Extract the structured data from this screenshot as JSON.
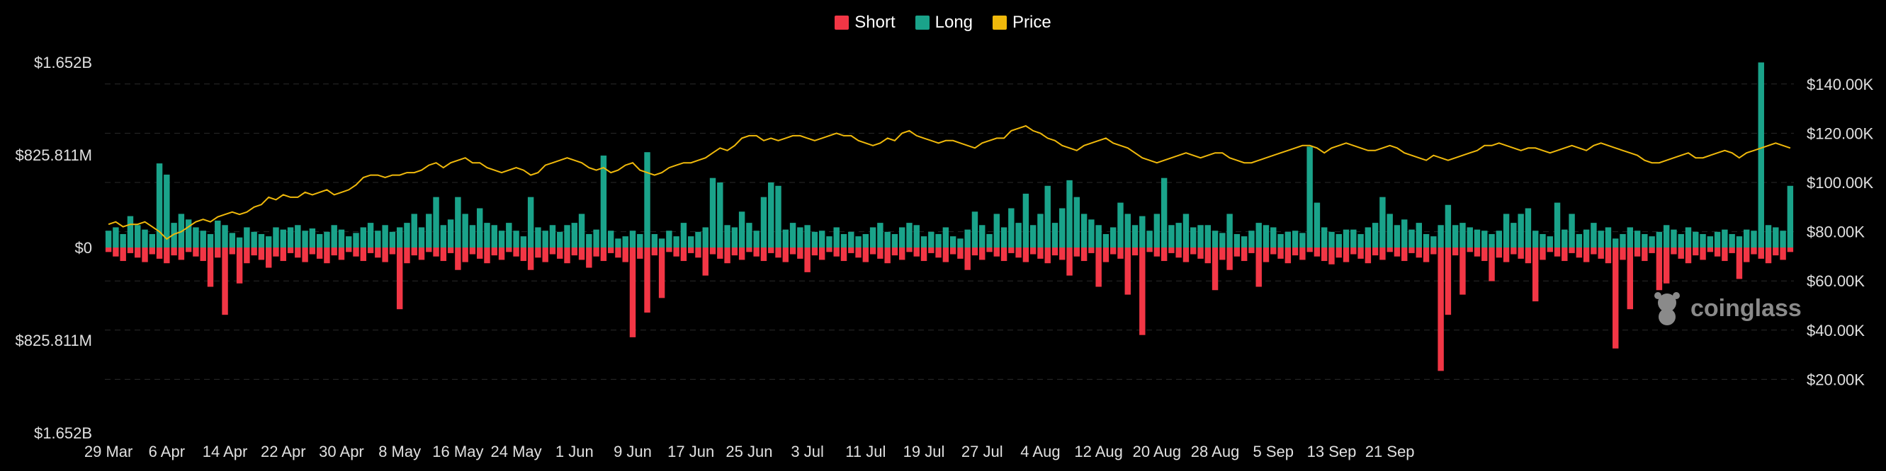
{
  "legend": {
    "short_label": "Short",
    "long_label": "Long",
    "price_label": "Price"
  },
  "watermark": {
    "text": "coinglass"
  },
  "chart_data": {
    "type": "bar",
    "title": "",
    "colors": {
      "short": "#f23645",
      "long": "#1aa38a",
      "price": "#f0b90b",
      "background": "#000000",
      "grid": "#2a2a2a",
      "text": "#e0e0e0"
    },
    "left_axis": {
      "ticks": [
        {
          "value": 1.652,
          "label": "$1.652B"
        },
        {
          "value": 0.825811,
          "label": "$825.811M"
        },
        {
          "value": 0,
          "label": "$0"
        },
        {
          "value": -0.825811,
          "label": "$825.811M"
        },
        {
          "value": -1.652,
          "label": "$1.652B"
        }
      ],
      "ylim": [
        -1.652,
        1.652
      ],
      "unit": "billions USD"
    },
    "right_axis": {
      "ticks": [
        "$140.00K",
        "$120.00K",
        "$100.00K",
        "$80.00K",
        "$60.00K",
        "$40.00K",
        "$20.00K"
      ],
      "tick_values": [
        140000,
        120000,
        100000,
        80000,
        60000,
        40000,
        20000
      ],
      "ylim": [
        0,
        150000
      ]
    },
    "x_labels": [
      "29 Mar",
      "6 Apr",
      "14 Apr",
      "22 Apr",
      "30 Apr",
      "8 May",
      "16 May",
      "24 May",
      "1 Jun",
      "9 Jun",
      "17 Jun",
      "25 Jun",
      "3 Jul",
      "11 Jul",
      "19 Jul",
      "27 Jul",
      "4 Aug",
      "12 Aug",
      "20 Aug",
      "28 Aug",
      "5 Sep",
      "13 Sep",
      "21 Sep"
    ],
    "days_per_label": 8,
    "long": [
      0.15,
      0.18,
      0.12,
      0.28,
      0.2,
      0.16,
      0.12,
      0.75,
      0.65,
      0.22,
      0.3,
      0.25,
      0.18,
      0.15,
      0.12,
      0.24,
      0.2,
      0.13,
      0.09,
      0.18,
      0.14,
      0.12,
      0.1,
      0.18,
      0.16,
      0.18,
      0.2,
      0.15,
      0.17,
      0.12,
      0.14,
      0.2,
      0.16,
      0.1,
      0.13,
      0.18,
      0.22,
      0.15,
      0.2,
      0.14,
      0.18,
      0.22,
      0.3,
      0.18,
      0.3,
      0.45,
      0.2,
      0.25,
      0.45,
      0.3,
      0.2,
      0.35,
      0.22,
      0.2,
      0.15,
      0.22,
      0.15,
      0.1,
      0.45,
      0.18,
      0.15,
      0.2,
      0.14,
      0.2,
      0.22,
      0.3,
      0.12,
      0.16,
      0.82,
      0.15,
      0.08,
      0.1,
      0.15,
      0.12,
      0.85,
      0.12,
      0.08,
      0.15,
      0.1,
      0.22,
      0.1,
      0.14,
      0.18,
      0.62,
      0.58,
      0.2,
      0.18,
      0.32,
      0.22,
      0.15,
      0.45,
      0.58,
      0.55,
      0.16,
      0.22,
      0.18,
      0.2,
      0.14,
      0.15,
      0.1,
      0.18,
      0.12,
      0.14,
      0.1,
      0.12,
      0.18,
      0.22,
      0.14,
      0.12,
      0.18,
      0.22,
      0.2,
      0.1,
      0.14,
      0.12,
      0.18,
      0.1,
      0.08,
      0.16,
      0.32,
      0.2,
      0.12,
      0.3,
      0.18,
      0.35,
      0.22,
      0.48,
      0.2,
      0.3,
      0.55,
      0.22,
      0.35,
      0.6,
      0.45,
      0.3,
      0.25,
      0.2,
      0.12,
      0.18,
      0.4,
      0.3,
      0.2,
      0.28,
      0.15,
      0.3,
      0.62,
      0.2,
      0.22,
      0.3,
      0.18,
      0.2,
      0.2,
      0.15,
      0.13,
      0.3,
      0.12,
      0.1,
      0.15,
      0.22,
      0.2,
      0.18,
      0.12,
      0.14,
      0.15,
      0.13,
      0.9,
      0.4,
      0.18,
      0.14,
      0.12,
      0.16,
      0.16,
      0.12,
      0.18,
      0.22,
      0.45,
      0.3,
      0.2,
      0.25,
      0.16,
      0.22,
      0.12,
      0.1,
      0.2,
      0.38,
      0.2,
      0.22,
      0.18,
      0.16,
      0.15,
      0.12,
      0.15,
      0.3,
      0.22,
      0.3,
      0.35,
      0.15,
      0.12,
      0.1,
      0.4,
      0.16,
      0.3,
      0.12,
      0.16,
      0.22,
      0.15,
      0.18,
      0.08,
      0.12,
      0.18,
      0.15,
      0.12,
      0.1,
      0.14,
      0.2,
      0.16,
      0.12,
      0.18,
      0.14,
      0.12,
      0.1,
      0.14,
      0.16,
      0.12,
      0.1,
      0.16,
      0.15,
      1.65,
      0.2,
      0.18,
      0.15,
      0.55
    ]
  }
}
